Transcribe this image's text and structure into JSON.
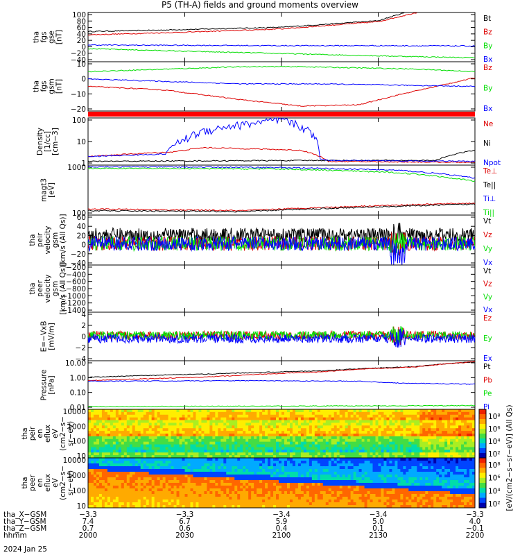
{
  "title": "P5 (TH-A) fields and ground moments overview",
  "chart_data": [
    {
      "type": "line",
      "id": "fgs_gse",
      "ylabel": [
        "tha",
        "fgs",
        "gse",
        "[nT]"
      ],
      "yticks": [
        "100",
        "80",
        "60",
        "40",
        "20",
        "0",
        "−20",
        "−40"
      ],
      "ylim": [
        -50,
        100
      ],
      "series": [
        {
          "name": "Bt",
          "color": "#000000",
          "x": [
            0,
            0.25,
            0.5,
            0.75,
            0.82
          ],
          "y": [
            42,
            48,
            55,
            75,
            100
          ]
        },
        {
          "name": "Bz",
          "color": "#dd0000",
          "x": [
            0,
            0.25,
            0.5,
            0.75,
            0.85
          ],
          "y": [
            32,
            40,
            50,
            72,
            100
          ]
        },
        {
          "name": "By",
          "color": "#00dd00",
          "x": [
            0,
            0.25,
            0.5,
            0.75,
            1.0
          ],
          "y": [
            -10,
            -18,
            -25,
            -32,
            -38
          ]
        },
        {
          "name": "Bx",
          "color": "#0000ff",
          "x": [
            0,
            0.25,
            0.5,
            0.75,
            1.0
          ],
          "y": [
            1,
            0,
            -1,
            -1,
            -2
          ]
        }
      ],
      "legend_order": [
        "Bt",
        "Bz",
        "By",
        "Bx"
      ]
    },
    {
      "type": "line",
      "id": "fgs_gsm",
      "ylabel": [
        "tha",
        "fgs",
        "gsm",
        "[nT]"
      ],
      "yticks": [
        "10",
        "0",
        "−10",
        "−20"
      ],
      "ylim": [
        -25,
        15
      ],
      "series": [
        {
          "name": "Bz",
          "color": "#dd0000",
          "x": [
            0,
            0.2,
            0.4,
            0.55,
            0.7,
            0.8,
            1.0
          ],
          "y": [
            -5,
            -8,
            -16,
            -21,
            -20,
            -12,
            2
          ]
        },
        {
          "name": "By",
          "color": "#00dd00",
          "x": [
            0,
            0.2,
            0.4,
            0.55,
            0.7,
            0.85,
            1.0
          ],
          "y": [
            7,
            9,
            11,
            11,
            10,
            9,
            7
          ]
        },
        {
          "name": "Bx",
          "color": "#0000ff",
          "x": [
            0,
            0.2,
            0.4,
            0.6,
            0.8,
            1.0
          ],
          "y": [
            1,
            -1,
            -3,
            -3,
            -4,
            -5
          ]
        }
      ],
      "legend_order": [
        "Bz",
        "By",
        "Bx"
      ]
    },
    {
      "type": "line",
      "id": "density",
      "log": true,
      "ylabel": [
        "Density",
        "[1/cc]",
        "[cm−3]"
      ],
      "yticks": [
        "100",
        "10",
        "1"
      ],
      "ylim": [
        0.6,
        100
      ],
      "series": [
        {
          "name": "Ne",
          "color": "#dd0000",
          "x": [
            0,
            0.22,
            0.3,
            0.55,
            0.62,
            1.0
          ],
          "y": [
            1.5,
            2.5,
            4,
            3,
            0.9,
            0.8
          ]
        },
        {
          "name": "Ni",
          "color": "#000000",
          "x": [
            0,
            0.3,
            0.6,
            0.9,
            1.0
          ],
          "y": [
            0.9,
            0.95,
            1.0,
            1.0,
            3
          ]
        },
        {
          "name": "Npot",
          "color": "#0000ff",
          "x": [
            0,
            0.2,
            0.25,
            0.3,
            0.4,
            0.5,
            0.6,
            0.62,
            1.0
          ],
          "y": [
            1.5,
            2,
            10,
            25,
            50,
            80,
            1.2,
            1.0,
            0.9
          ]
        }
      ],
      "legend_order": [
        "Ne",
        "Ni",
        "Npot"
      ]
    },
    {
      "type": "line",
      "id": "temp",
      "log": true,
      "ylabel": [
        "magt3",
        "[eV]"
      ],
      "yticks": [
        "1000",
        "100"
      ],
      "ylim": [
        40,
        4000
      ],
      "series": [
        {
          "name": "Te⊥",
          "color": "#dd0000",
          "x": [
            0,
            0.4,
            0.8,
            1.0
          ],
          "y": [
            70,
            60,
            100,
            120
          ]
        },
        {
          "name": "Te||",
          "color": "#000000",
          "x": [
            0,
            0.4,
            0.8,
            1.0
          ],
          "y": [
            60,
            55,
            90,
            110
          ]
        },
        {
          "name": "Ti⊥",
          "color": "#0000ff",
          "x": [
            0,
            0.5,
            0.8,
            1.0
          ],
          "y": [
            3500,
            3200,
            2500,
            1200
          ]
        },
        {
          "name": "Ti||",
          "color": "#00dd00",
          "x": [
            0,
            0.5,
            0.8,
            1.0
          ],
          "y": [
            3000,
            2800,
            2000,
            900
          ]
        }
      ],
      "legend_order": [
        "Te⊥",
        "Te||",
        "Ti⊥",
        "Ti||"
      ]
    },
    {
      "type": "line",
      "id": "peir_vel",
      "ylabel": [
        "tha",
        "peir",
        "velocity",
        "gsm",
        "[km/s (All Qs)]"
      ],
      "yticks": [
        "60",
        "40",
        "20",
        "0",
        "−20",
        "−40"
      ],
      "ylim": [
        -45,
        60
      ],
      "series": [
        {
          "name": "Vt",
          "color": "#000000"
        },
        {
          "name": "Vz",
          "color": "#dd0000"
        },
        {
          "name": "Vy",
          "color": "#00dd00"
        },
        {
          "name": "Vx",
          "color": "#0000ff"
        }
      ],
      "legend_order": [
        "Vt",
        "Vz",
        "Vy",
        "Vx"
      ]
    },
    {
      "type": "line",
      "id": "peer_vel",
      "ylabel": [
        "tha",
        "peer",
        "velocity",
        "gsm",
        "[km/s (All Qs)]"
      ],
      "yticks": [
        "−200",
        "−400",
        "−600",
        "−800",
        "−1000",
        "−1200",
        "−1400"
      ],
      "ylim": [
        -1450,
        -150
      ],
      "series": [
        {
          "name": "Vt",
          "color": "#000000"
        },
        {
          "name": "Vz",
          "color": "#dd0000"
        },
        {
          "name": "Vy",
          "color": "#00dd00"
        },
        {
          "name": "Vx",
          "color": "#0000ff"
        }
      ],
      "legend_order": [
        "Vt",
        "Vz",
        "Vy",
        "Vx"
      ]
    },
    {
      "type": "line",
      "id": "efield",
      "ylabel": [
        "E=−VxB",
        "[mV/m]"
      ],
      "yticks": [
        "4",
        "2",
        "0",
        "−2",
        "−4"
      ],
      "ylim": [
        -4.5,
        4.5
      ],
      "series": [
        {
          "name": "Ez",
          "color": "#dd0000"
        },
        {
          "name": "Ey",
          "color": "#00dd00"
        },
        {
          "name": "Ex",
          "color": "#0000ff"
        }
      ],
      "legend_order": [
        "Ez",
        "Ey",
        "Ex"
      ]
    },
    {
      "type": "line",
      "id": "pressure",
      "log": true,
      "ylabel": [
        "Pressure",
        "[nPa]"
      ],
      "yticks": [
        "10.00",
        "1.00",
        "0.10",
        "0.01"
      ],
      "ylim": [
        0.008,
        12
      ],
      "series": [
        {
          "name": "Pt",
          "color": "#000000",
          "x": [
            0,
            0.3,
            0.6,
            0.85,
            1.0
          ],
          "y": [
            1.0,
            1.6,
            2.6,
            5.0,
            10.0
          ]
        },
        {
          "name": "Pb",
          "color": "#dd0000",
          "x": [
            0,
            0.3,
            0.6,
            0.85,
            1.0
          ],
          "y": [
            0.6,
            1.0,
            2.2,
            4.8,
            10.0
          ]
        },
        {
          "name": "Pe",
          "color": "#00dd00",
          "x": [
            0,
            0.5,
            1.0
          ],
          "y": [
            0.012,
            0.013,
            0.014
          ]
        },
        {
          "name": "Pi",
          "color": "#0000ff",
          "x": [
            0,
            0.4,
            0.7,
            0.8,
            1.0
          ],
          "y": [
            0.55,
            0.6,
            0.55,
            0.42,
            0.35
          ]
        }
      ],
      "legend_order": [
        "Pt",
        "Pb",
        "Pe",
        "Pi"
      ]
    },
    {
      "type": "heatmap",
      "id": "peir_spec",
      "ylabel": [
        "tha",
        "peir",
        "en",
        "eflux",
        "eV",
        "(cm2−s−",
        "sr−eV)"
      ],
      "yticks": [
        "10000",
        "1000",
        "100",
        "10"
      ]
    },
    {
      "type": "heatmap",
      "id": "peer_spec",
      "ylabel": [
        "tha",
        "peer",
        "en",
        "eflux",
        "eV",
        "(cm2−s−",
        "sr−eV)"
      ],
      "yticks": [
        "10000",
        "1000",
        "100",
        "10"
      ]
    }
  ],
  "colorbar": {
    "label": "[eV/(cm2−s−sr−eV)] (All Qs)",
    "ticks1": [
      "10⁸",
      "10⁶",
      "10⁴",
      "10²"
    ],
    "ticks2": [
      "10⁸",
      "10⁶",
      "10⁴",
      "10²"
    ]
  },
  "xaxis": {
    "rows": [
      {
        "label": "tha_X−GSM",
        "values": [
          "−3.3",
          "−3.3",
          "−3.4",
          "−3.4",
          "−3.3"
        ]
      },
      {
        "label": "tha_Y−GSM",
        "values": [
          "7.4",
          "6.7",
          "5.9",
          "5.0",
          "4.0"
        ]
      },
      {
        "label": "tha_Z−GSM",
        "values": [
          "0.7",
          "0.6",
          "0.4",
          "0.1",
          "−0.1"
        ]
      },
      {
        "label": "hhmm",
        "values": [
          "2000",
          "2030",
          "2100",
          "2130",
          "2200"
        ]
      }
    ],
    "date": "2024 Jan 25"
  }
}
